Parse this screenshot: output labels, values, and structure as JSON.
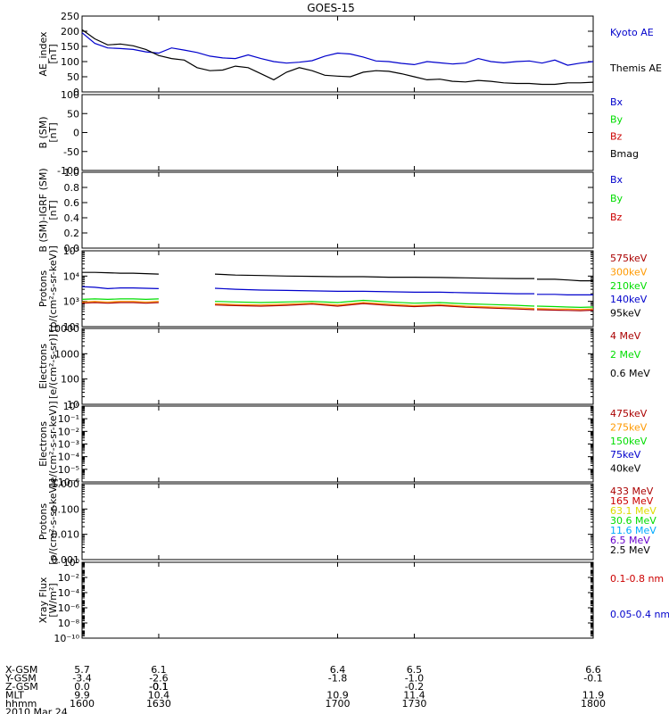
{
  "title": "GOES-15",
  "colors": {
    "black": "#000000",
    "blue": "#0000cc",
    "green": "#00dd00",
    "red": "#cc0000",
    "darkred": "#aa0000",
    "orange": "#ff9900",
    "yellow": "#dddd00",
    "cyan": "#00aaff",
    "purple": "#6600cc"
  },
  "time_axis": {
    "xlim": [
      1600,
      1800
    ],
    "rows": [
      {
        "label": "X-GSM",
        "values": [
          "5.7",
          "6.1",
          "6.4",
          "6.5",
          "6.6"
        ]
      },
      {
        "label": "Y-GSM",
        "values": [
          "-3.4",
          "-2.6",
          "-1.8",
          "-1.0",
          "-0.1"
        ]
      },
      {
        "label": "Z-GSM",
        "values": [
          "0.0",
          "-0.1",
          "-0.1",
          "-0.2",
          "-0.1"
        ]
      },
      {
        "label": "MLT",
        "values": [
          "9.9",
          "10.4",
          "10.9",
          "11.4",
          "11.9"
        ]
      },
      {
        "label": "hhmm",
        "values": [
          "1600",
          "1630",
          "1700",
          "1730",
          "1800"
        ]
      }
    ],
    "date": "2010 Mar 24"
  },
  "chart_data": [
    {
      "type": "line",
      "ylabel": "AE_index\n[nT]",
      "ylim": [
        0,
        250
      ],
      "ticks": [
        "0",
        "50",
        "100",
        "150",
        "200",
        "250"
      ],
      "tick_values": [
        0,
        50,
        100,
        150,
        200,
        250
      ],
      "legend": [
        {
          "name": "Kyoto AE",
          "color": "blue"
        },
        {
          "name": "Themis AE",
          "color": "black"
        }
      ],
      "series": [
        {
          "name": "Kyoto AE",
          "color": "blue",
          "x": [
            1600,
            1605,
            1610,
            1615,
            1620,
            1625,
            1630,
            1635,
            1640,
            1645,
            1650,
            1655,
            1660,
            1665,
            1670,
            1675,
            1680,
            1685,
            1690,
            1695,
            1700,
            1705,
            1710,
            1715,
            1720,
            1725,
            1730,
            1735,
            1740,
            1745,
            1750,
            1755,
            1760,
            1765,
            1770,
            1775,
            1780,
            1785,
            1790,
            1795,
            1800
          ],
          "y": [
            195,
            160,
            145,
            143,
            140,
            132,
            128,
            145,
            138,
            130,
            118,
            112,
            110,
            122,
            110,
            100,
            95,
            98,
            103,
            118,
            128,
            125,
            115,
            102,
            100,
            94,
            90,
            100,
            96,
            92,
            95,
            110,
            100,
            96,
            100,
            102,
            95,
            105,
            88,
            95,
            100
          ]
        },
        {
          "name": "Themis AE",
          "color": "black",
          "x": [
            1600,
            1605,
            1610,
            1615,
            1620,
            1625,
            1630,
            1635,
            1640,
            1645,
            1650,
            1655,
            1660,
            1665,
            1670,
            1675,
            1680,
            1685,
            1690,
            1695,
            1700,
            1705,
            1710,
            1715,
            1720,
            1725,
            1730,
            1735,
            1740,
            1745,
            1750,
            1755,
            1760,
            1765,
            1770,
            1775,
            1780,
            1785,
            1790,
            1795,
            1800
          ],
          "y": [
            205,
            175,
            155,
            158,
            152,
            140,
            120,
            110,
            105,
            80,
            70,
            72,
            85,
            80,
            60,
            40,
            65,
            80,
            70,
            55,
            52,
            50,
            65,
            70,
            68,
            60,
            50,
            40,
            42,
            35,
            33,
            38,
            35,
            30,
            28,
            28,
            25,
            25,
            30,
            30,
            32
          ]
        }
      ]
    },
    {
      "type": "line",
      "ylabel": "B (SM)\n[nT]",
      "ylim": [
        -100,
        100
      ],
      "ticks": [
        "-100",
        "-50",
        "0",
        "50",
        "100"
      ],
      "tick_values": [
        -100,
        -50,
        0,
        50,
        100
      ],
      "legend": [
        {
          "name": "Bx",
          "color": "blue"
        },
        {
          "name": "By",
          "color": "green"
        },
        {
          "name": "Bz",
          "color": "red"
        },
        {
          "name": "Bmag",
          "color": "black"
        }
      ],
      "series": []
    },
    {
      "type": "line",
      "ylabel": "B (SM)-IGRF (SM)\n[nT]",
      "ylim": [
        0,
        1
      ],
      "ticks": [
        "0.0",
        "0.2",
        "0.4",
        "0.6",
        "0.8",
        "1.0"
      ],
      "tick_values": [
        0,
        0.2,
        0.4,
        0.6,
        0.8,
        1.0
      ],
      "legend": [
        {
          "name": "Bx",
          "color": "blue"
        },
        {
          "name": "By",
          "color": "green"
        },
        {
          "name": "Bz",
          "color": "red"
        }
      ],
      "series": []
    },
    {
      "type": "line",
      "scale": "log",
      "ylabel": "Protons\n[p/(cm²-s-sr-keV)]",
      "ylim": [
        100,
        100000
      ],
      "ticks": [
        "10²",
        "10³",
        "10⁴",
        "10⁵"
      ],
      "tick_values": [
        100,
        1000,
        10000,
        100000
      ],
      "legend": [
        {
          "name": "575keV",
          "color": "darkred"
        },
        {
          "name": "300keV",
          "color": "orange"
        },
        {
          "name": "210keV",
          "color": "green"
        },
        {
          "name": "140keV",
          "color": "blue"
        },
        {
          "name": "95keV",
          "color": "black"
        }
      ],
      "series": [
        {
          "name": "95keV",
          "color": "black",
          "segments": [
            {
              "x": [
                1600,
                1605,
                1610,
                1615,
                1620,
                1625,
                1630
              ],
              "y": [
                14000,
                14000,
                13500,
                13000,
                13000,
                12500,
                12000
              ]
            },
            {
              "x": [
                1652,
                1660,
                1670,
                1680,
                1690,
                1700,
                1710,
                1720,
                1730,
                1740,
                1750,
                1760,
                1770,
                1777
              ],
              "y": [
                12000,
                11000,
                10500,
                10000,
                9800,
                9500,
                9500,
                9000,
                9000,
                8800,
                8500,
                8200,
                8000,
                8000
              ]
            },
            {
              "x": [
                1778,
                1785,
                1790,
                1795,
                1800
              ],
              "y": [
                7500,
                7500,
                7000,
                6500,
                6500
              ]
            }
          ]
        },
        {
          "name": "140keV",
          "color": "blue",
          "segments": [
            {
              "x": [
                1600,
                1605,
                1610,
                1615,
                1620,
                1625,
                1630
              ],
              "y": [
                3800,
                3600,
                3200,
                3400,
                3400,
                3300,
                3200
              ]
            },
            {
              "x": [
                1652,
                1660,
                1670,
                1680,
                1690,
                1700,
                1710,
                1720,
                1730,
                1740,
                1750,
                1760,
                1770,
                1777
              ],
              "y": [
                3300,
                3000,
                2800,
                2700,
                2600,
                2500,
                2500,
                2400,
                2300,
                2300,
                2200,
                2100,
                2000,
                2000
              ]
            },
            {
              "x": [
                1778,
                1785,
                1790,
                1795,
                1800
              ],
              "y": [
                1900,
                1900,
                1800,
                1800,
                1800
              ]
            }
          ]
        },
        {
          "name": "210keV",
          "color": "green",
          "segments": [
            {
              "x": [
                1600,
                1605,
                1610,
                1615,
                1620,
                1625,
                1630
              ],
              "y": [
                1200,
                1250,
                1200,
                1250,
                1250,
                1200,
                1250
              ]
            },
            {
              "x": [
                1652,
                1660,
                1670,
                1680,
                1690,
                1700,
                1710,
                1720,
                1730,
                1740,
                1750,
                1760,
                1770,
                1777
              ],
              "y": [
                1000,
                950,
                900,
                950,
                1000,
                900,
                1100,
                950,
                850,
                900,
                800,
                750,
                700,
                650
              ]
            },
            {
              "x": [
                1778,
                1785,
                1790,
                1795,
                1800
              ],
              "y": [
                650,
                620,
                600,
                580,
                600
              ]
            }
          ]
        },
        {
          "name": "300keV",
          "color": "orange",
          "segments": [
            {
              "x": [
                1600,
                1605,
                1610,
                1615,
                1620,
                1625,
                1630
              ],
              "y": [
                950,
                1000,
                950,
                1000,
                1000,
                950,
                1000
              ]
            },
            {
              "x": [
                1652,
                1660,
                1670,
                1680,
                1690,
                1700,
                1710,
                1720,
                1730,
                1740,
                1750,
                1760,
                1770,
                1777
              ],
              "y": [
                800,
                750,
                720,
                780,
                850,
                720,
                900,
                780,
                680,
                740,
                650,
                600,
                560,
                520
              ]
            },
            {
              "x": [
                1778,
                1785,
                1790,
                1795,
                1800
              ],
              "y": [
                520,
                500,
                490,
                480,
                500
              ]
            }
          ]
        },
        {
          "name": "575keV",
          "color": "darkred",
          "segments": [
            {
              "x": [
                1600,
                1605,
                1610,
                1615,
                1620,
                1625,
                1630
              ],
              "y": [
                850,
                900,
                850,
                900,
                900,
                850,
                900
              ]
            },
            {
              "x": [
                1652,
                1660,
                1670,
                1680,
                1690,
                1700,
                1710,
                1720,
                1730,
                1740,
                1750,
                1760,
                1770,
                1777
              ],
              "y": [
                720,
                680,
                650,
                700,
                780,
                650,
                820,
                700,
                620,
                680,
                590,
                540,
                500,
                470
              ]
            },
            {
              "x": [
                1778,
                1785,
                1790,
                1795,
                1800
              ],
              "y": [
                470,
                450,
                440,
                430,
                450
              ]
            }
          ]
        }
      ]
    },
    {
      "type": "line",
      "scale": "log",
      "ylabel": "Electrons\n[e/(cm²-s-sr)]",
      "ylim": [
        10,
        10000
      ],
      "ticks": [
        "10",
        "100",
        "1000",
        "10000"
      ],
      "tick_values": [
        10,
        100,
        1000,
        10000
      ],
      "legend": [
        {
          "name": "4 MeV",
          "color": "darkred"
        },
        {
          "name": "2 MeV",
          "color": "green"
        },
        {
          "name": "0.6 MeV",
          "color": "black"
        }
      ],
      "series": []
    },
    {
      "type": "line",
      "scale": "log",
      "ylabel": "Electrons\n[e/(cm²-s-sr-keV)]",
      "ylim": [
        1e-06,
        1
      ],
      "ticks": [
        "10⁻⁶",
        "10⁻⁵",
        "10⁻⁴",
        "10⁻³",
        "10⁻²",
        "10⁻¹",
        "10⁰"
      ],
      "tick_values": [
        1e-06,
        1e-05,
        0.0001,
        0.001,
        0.01,
        0.1,
        1
      ],
      "legend": [
        {
          "name": "475keV",
          "color": "darkred"
        },
        {
          "name": "275keV",
          "color": "orange"
        },
        {
          "name": "150keV",
          "color": "green"
        },
        {
          "name": "75keV",
          "color": "blue"
        },
        {
          "name": "40keV",
          "color": "black"
        }
      ],
      "series": []
    },
    {
      "type": "line",
      "scale": "log",
      "ylabel": "Protons\n[p/(cm²-s-sr-keV)]",
      "ylim": [
        0.001,
        1
      ],
      "ticks": [
        "0.001",
        "0.010",
        "0.100",
        "1.000"
      ],
      "tick_values": [
        0.001,
        0.01,
        0.1,
        1
      ],
      "legend": [
        {
          "name": "433 MeV",
          "color": "darkred"
        },
        {
          "name": "165 MeV",
          "color": "red"
        },
        {
          "name": "63.1 MeV",
          "color": "yellow"
        },
        {
          "name": "30.6 MeV",
          "color": "green"
        },
        {
          "name": "11.6 MeV",
          "color": "cyan"
        },
        {
          "name": "6.5 MeV",
          "color": "purple"
        },
        {
          "name": "2.5 MeV",
          "color": "black"
        }
      ],
      "series": []
    },
    {
      "type": "line",
      "scale": "log",
      "ylabel": "Xray Flux\n[W/m²]",
      "ylim": [
        1e-10,
        1
      ],
      "ticks": [
        "10⁻¹⁰",
        "10⁻⁸",
        "10⁻⁶",
        "10⁻⁴",
        "10⁻²",
        "10⁰"
      ],
      "tick_values": [
        1e-10,
        1e-08,
        1e-06,
        0.0001,
        0.01,
        1
      ],
      "legend": [
        {
          "name": "0.1-0.8 nm",
          "color": "red"
        },
        {
          "name": "0.05-0.4 nm",
          "color": "blue"
        }
      ],
      "series": []
    }
  ]
}
